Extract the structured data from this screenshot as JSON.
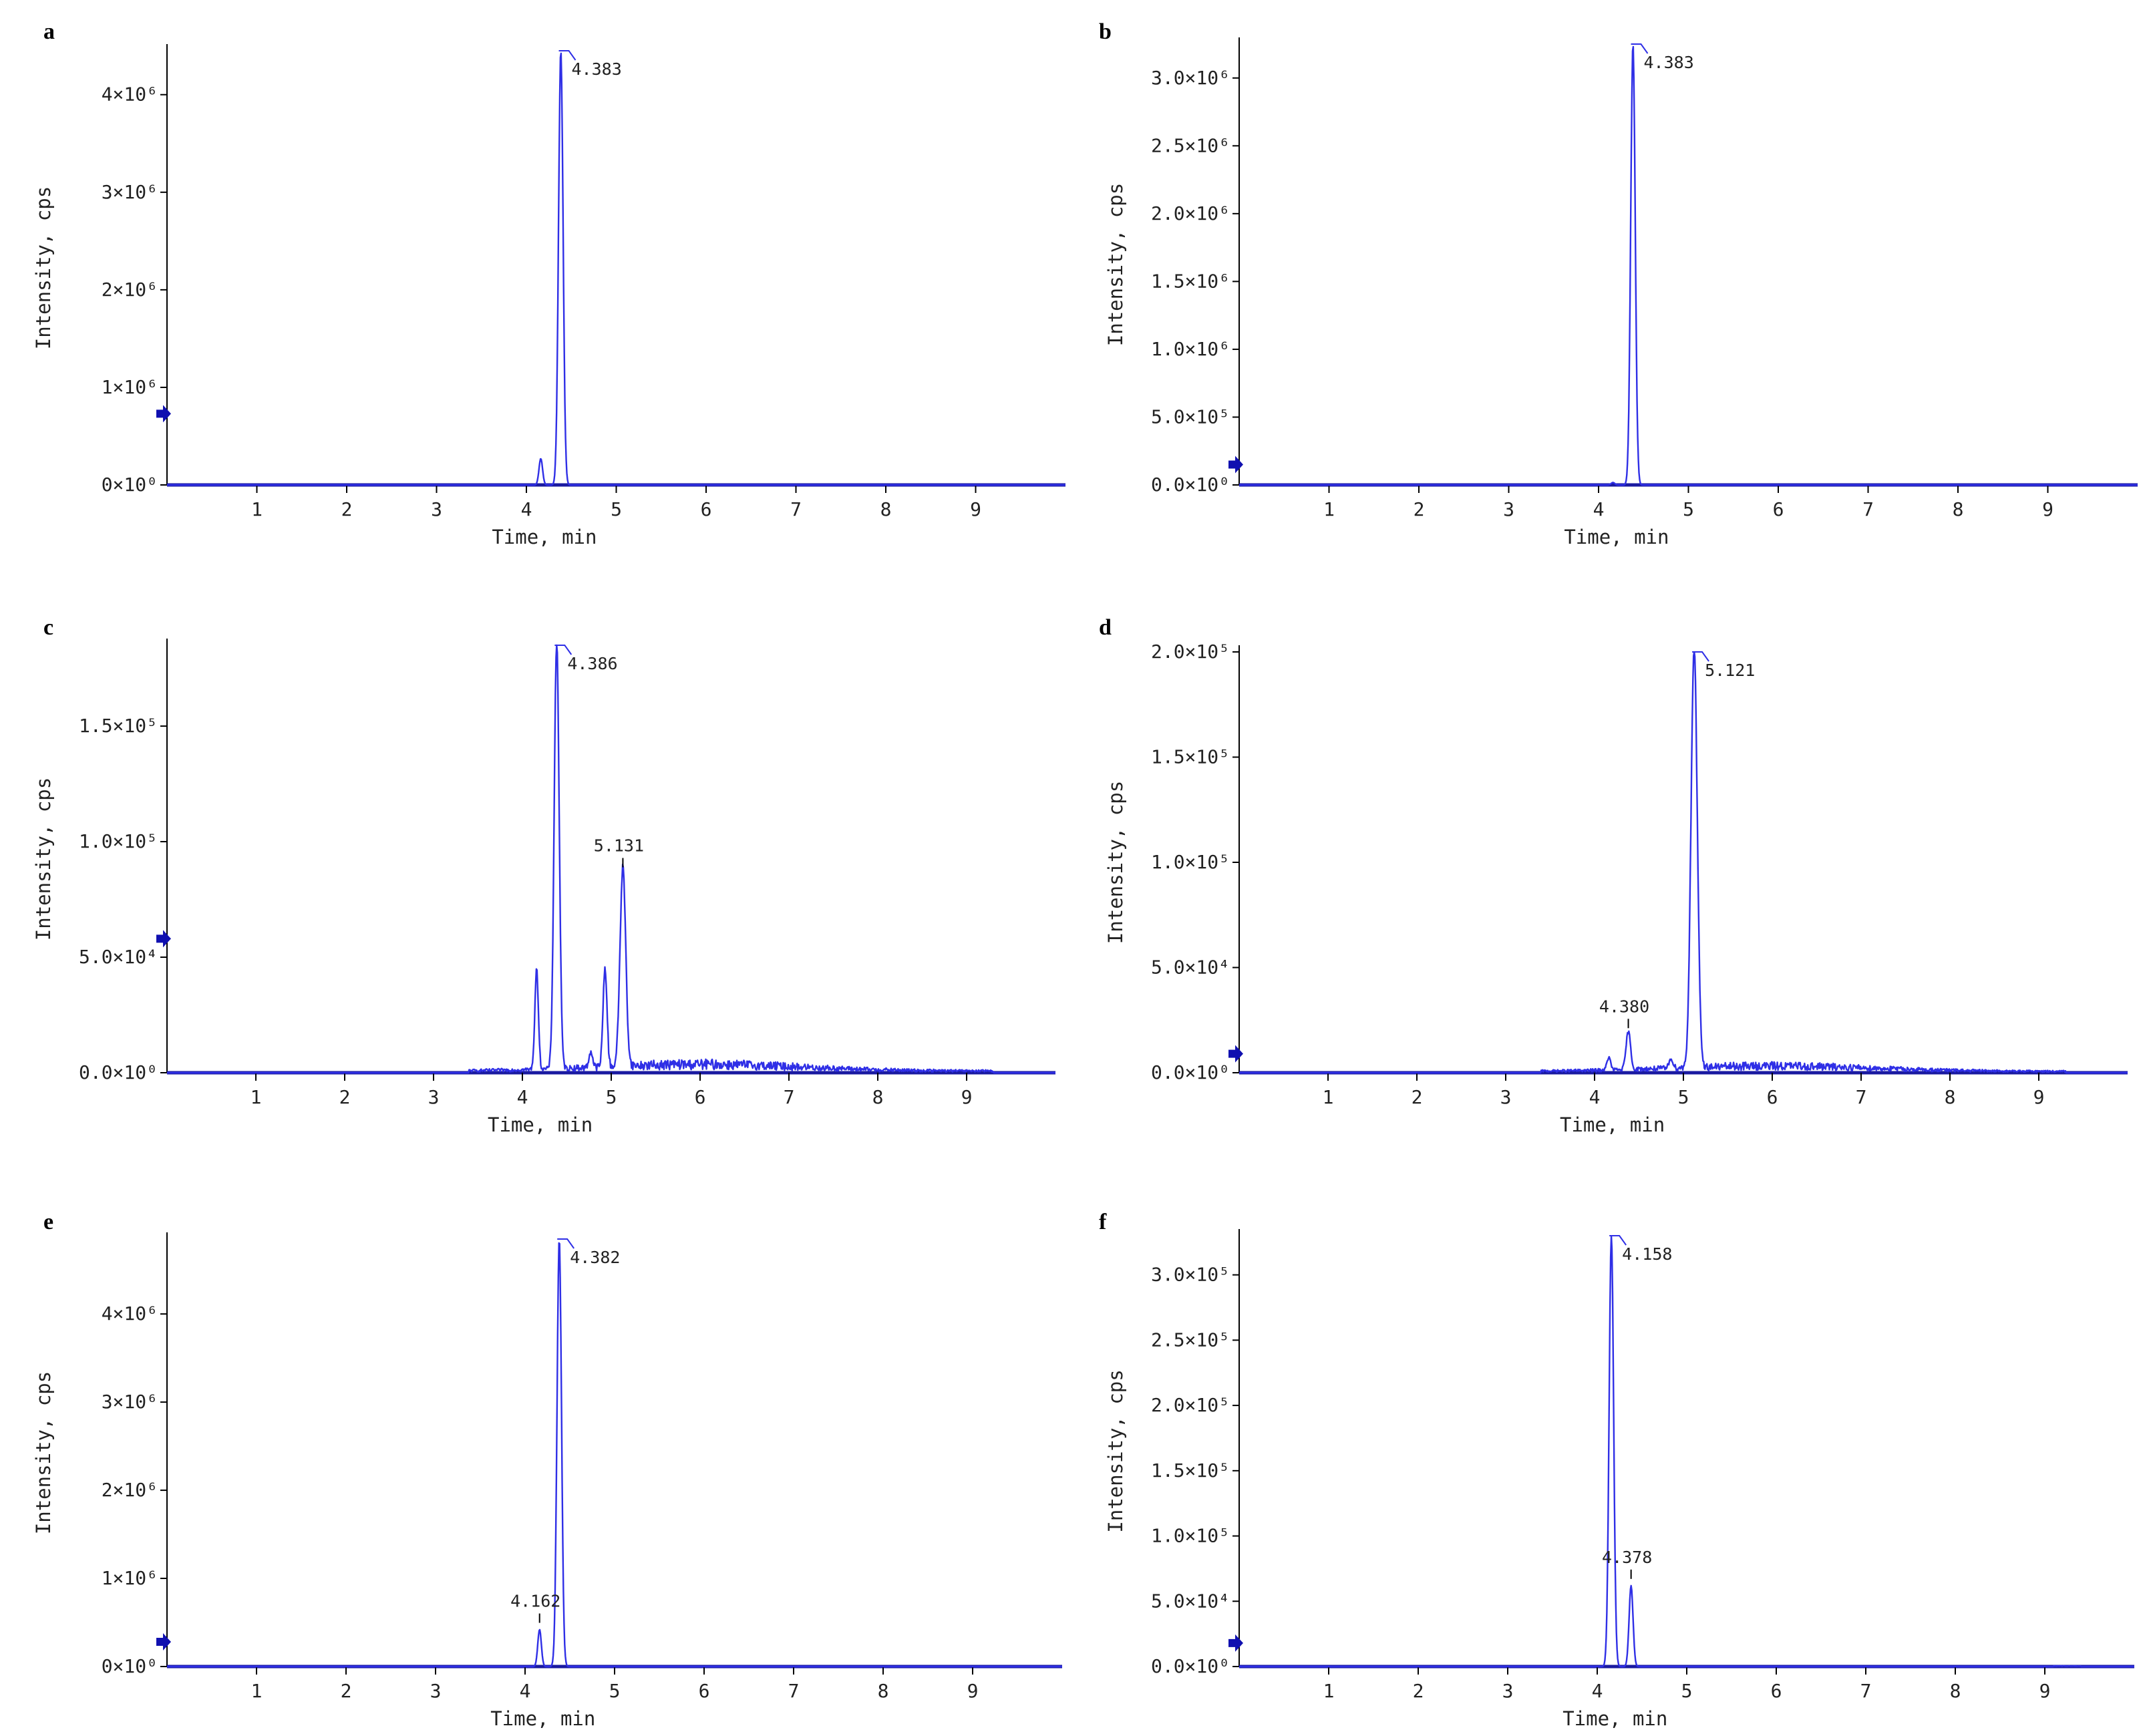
{
  "colors": {
    "trace": "#2f2fe6",
    "axis": "#1a1aa0",
    "marker": "#1010b0",
    "text": "#222222"
  },
  "chart_data": [
    {
      "panel": "a",
      "type": "line",
      "xlabel": "Time, min",
      "ylabel": "Intensity, cps",
      "xlim": [
        0,
        10
      ],
      "ylim": [
        0,
        4450000.0
      ],
      "xticks": [
        "1",
        "2",
        "3",
        "4",
        "5",
        "6",
        "7",
        "8",
        "9"
      ],
      "yticks": [
        {
          "value": 0,
          "label": "0×10⁰"
        },
        {
          "value": 1000000.0,
          "label": "1×10⁶"
        },
        {
          "value": 2000000.0,
          "label": "2×10⁶"
        },
        {
          "value": 3000000.0,
          "label": "3×10⁶"
        },
        {
          "value": 4000000.0,
          "label": "4×10⁶"
        }
      ],
      "marker_value": 730000.0,
      "flat_top": true,
      "peaks": [
        {
          "x": 4.383,
          "y": 4450000.0,
          "w": 0.025,
          "label": "4.383"
        },
        {
          "x": 4.16,
          "y": 270000.0,
          "w": 0.02,
          "label": ""
        }
      ],
      "noise_ranges": []
    },
    {
      "panel": "b",
      "type": "line",
      "xlabel": "Time, min",
      "ylabel": "Intensity, cps",
      "xlim": [
        0,
        10
      ],
      "ylim": [
        0,
        3250000.0
      ],
      "xticks": [
        "1",
        "2",
        "3",
        "4",
        "5",
        "6",
        "7",
        "8",
        "9"
      ],
      "yticks": [
        {
          "value": 0,
          "label": "0.0×10⁰"
        },
        {
          "value": 500000.0,
          "label": "5.0×10⁵"
        },
        {
          "value": 1000000.0,
          "label": "1.0×10⁶"
        },
        {
          "value": 1500000.0,
          "label": "1.5×10⁶"
        },
        {
          "value": 2000000.0,
          "label": "2.0×10⁶"
        },
        {
          "value": 2500000.0,
          "label": "2.5×10⁶"
        },
        {
          "value": 3000000.0,
          "label": "3.0×10⁶"
        }
      ],
      "marker_value": 150000.0,
      "flat_top": true,
      "peaks": [
        {
          "x": 4.383,
          "y": 3250000.0,
          "w": 0.025,
          "label": "4.383"
        },
        {
          "x": 4.16,
          "y": 18000.0,
          "w": 0.02,
          "label": ""
        }
      ],
      "noise_ranges": []
    },
    {
      "panel": "c",
      "type": "line",
      "xlabel": "Time, min",
      "ylabel": "Intensity, cps",
      "xlim": [
        0,
        10
      ],
      "ylim": [
        0,
        185000.0
      ],
      "xticks": [
        "1",
        "2",
        "3",
        "4",
        "5",
        "6",
        "7",
        "8",
        "9"
      ],
      "yticks": [
        {
          "value": 0,
          "label": "0.0×10⁰"
        },
        {
          "value": 50000.0,
          "label": "5.0×10⁴"
        },
        {
          "value": 100000.0,
          "label": "1.0×10⁵"
        },
        {
          "value": 150000.0,
          "label": "1.5×10⁵"
        }
      ],
      "marker_value": 58000.0,
      "flat_top": true,
      "peaks": [
        {
          "x": 4.386,
          "y": 185000.0,
          "w": 0.028,
          "label": "4.386"
        },
        {
          "x": 5.131,
          "y": 86000.0,
          "w": 0.032,
          "label": "5.131"
        },
        {
          "x": 4.16,
          "y": 43000.0,
          "w": 0.02,
          "label": ""
        },
        {
          "x": 4.93,
          "y": 43000.0,
          "w": 0.022,
          "label": ""
        },
        {
          "x": 4.77,
          "y": 7000.0,
          "w": 0.02,
          "label": ""
        }
      ],
      "noise_ranges": [
        {
          "from": 3.4,
          "to": 9.3,
          "amp": 4500.0
        }
      ]
    },
    {
      "panel": "d",
      "type": "line",
      "xlabel": "Time, min",
      "ylabel": "Intensity, cps",
      "xlim": [
        0,
        10
      ],
      "ylim": [
        0,
        200000.0
      ],
      "xticks": [
        "1",
        "2",
        "3",
        "4",
        "5",
        "6",
        "7",
        "8",
        "9"
      ],
      "yticks": [
        {
          "value": 0,
          "label": "0.0×10⁰"
        },
        {
          "value": 50000.0,
          "label": "5.0×10⁴"
        },
        {
          "value": 100000.0,
          "label": "1.0×10⁵"
        },
        {
          "value": 150000.0,
          "label": "1.5×10⁵"
        },
        {
          "value": 200000.0,
          "label": "2.0×10⁵"
        }
      ],
      "marker_value": 9000.0,
      "flat_top": true,
      "peaks": [
        {
          "x": 5.121,
          "y": 200000.0,
          "w": 0.035,
          "label": "5.121"
        },
        {
          "x": 4.38,
          "y": 18000.0,
          "w": 0.025,
          "label": "4.380"
        },
        {
          "x": 4.16,
          "y": 6000.0,
          "w": 0.02,
          "label": ""
        },
        {
          "x": 4.86,
          "y": 5000.0,
          "w": 0.02,
          "label": ""
        }
      ],
      "noise_ranges": [
        {
          "from": 3.4,
          "to": 9.3,
          "amp": 4000.0
        }
      ]
    },
    {
      "panel": "e",
      "type": "line",
      "xlabel": "Time, min",
      "ylabel": "Intensity, cps",
      "xlim": [
        0,
        10
      ],
      "ylim": [
        0,
        4850000.0
      ],
      "xticks": [
        "1",
        "2",
        "3",
        "4",
        "5",
        "6",
        "7",
        "8",
        "9"
      ],
      "yticks": [
        {
          "value": 0,
          "label": "0×10⁰"
        },
        {
          "value": 1000000.0,
          "label": "1×10⁶"
        },
        {
          "value": 2000000.0,
          "label": "2×10⁶"
        },
        {
          "value": 3000000.0,
          "label": "3×10⁶"
        },
        {
          "value": 4000000.0,
          "label": "4×10⁶"
        }
      ],
      "marker_value": 280000.0,
      "flat_top": true,
      "peaks": [
        {
          "x": 4.382,
          "y": 4850000.0,
          "w": 0.025,
          "label": "4.382"
        },
        {
          "x": 4.162,
          "y": 420000.0,
          "w": 0.02,
          "label": "4.162"
        }
      ],
      "noise_ranges": []
    },
    {
      "panel": "f",
      "type": "line",
      "xlabel": "Time, min",
      "ylabel": "Intensity, cps",
      "xlim": [
        0,
        10
      ],
      "ylim": [
        0,
        330000.0
      ],
      "xticks": [
        "1",
        "2",
        "3",
        "4",
        "5",
        "6",
        "7",
        "8",
        "9"
      ],
      "yticks": [
        {
          "value": 0,
          "label": "0.0×10⁰"
        },
        {
          "value": 50000.0,
          "label": "5.0×10⁴"
        },
        {
          "value": 100000.0,
          "label": "1.0×10⁵"
        },
        {
          "value": 150000.0,
          "label": "1.5×10⁵"
        },
        {
          "value": 200000.0,
          "label": "2.0×10⁵"
        },
        {
          "value": 250000.0,
          "label": "2.5×10⁵"
        },
        {
          "value": 300000.0,
          "label": "3.0×10⁵"
        }
      ],
      "marker_value": 18000.0,
      "flat_top": true,
      "peaks": [
        {
          "x": 4.158,
          "y": 330000.0,
          "w": 0.025,
          "label": "4.158"
        },
        {
          "x": 4.378,
          "y": 62000.0,
          "w": 0.022,
          "label": "4.378"
        }
      ],
      "noise_ranges": [
        {
          "from": 9.1,
          "to": 9.4,
          "amp": 2000.0
        }
      ]
    }
  ]
}
